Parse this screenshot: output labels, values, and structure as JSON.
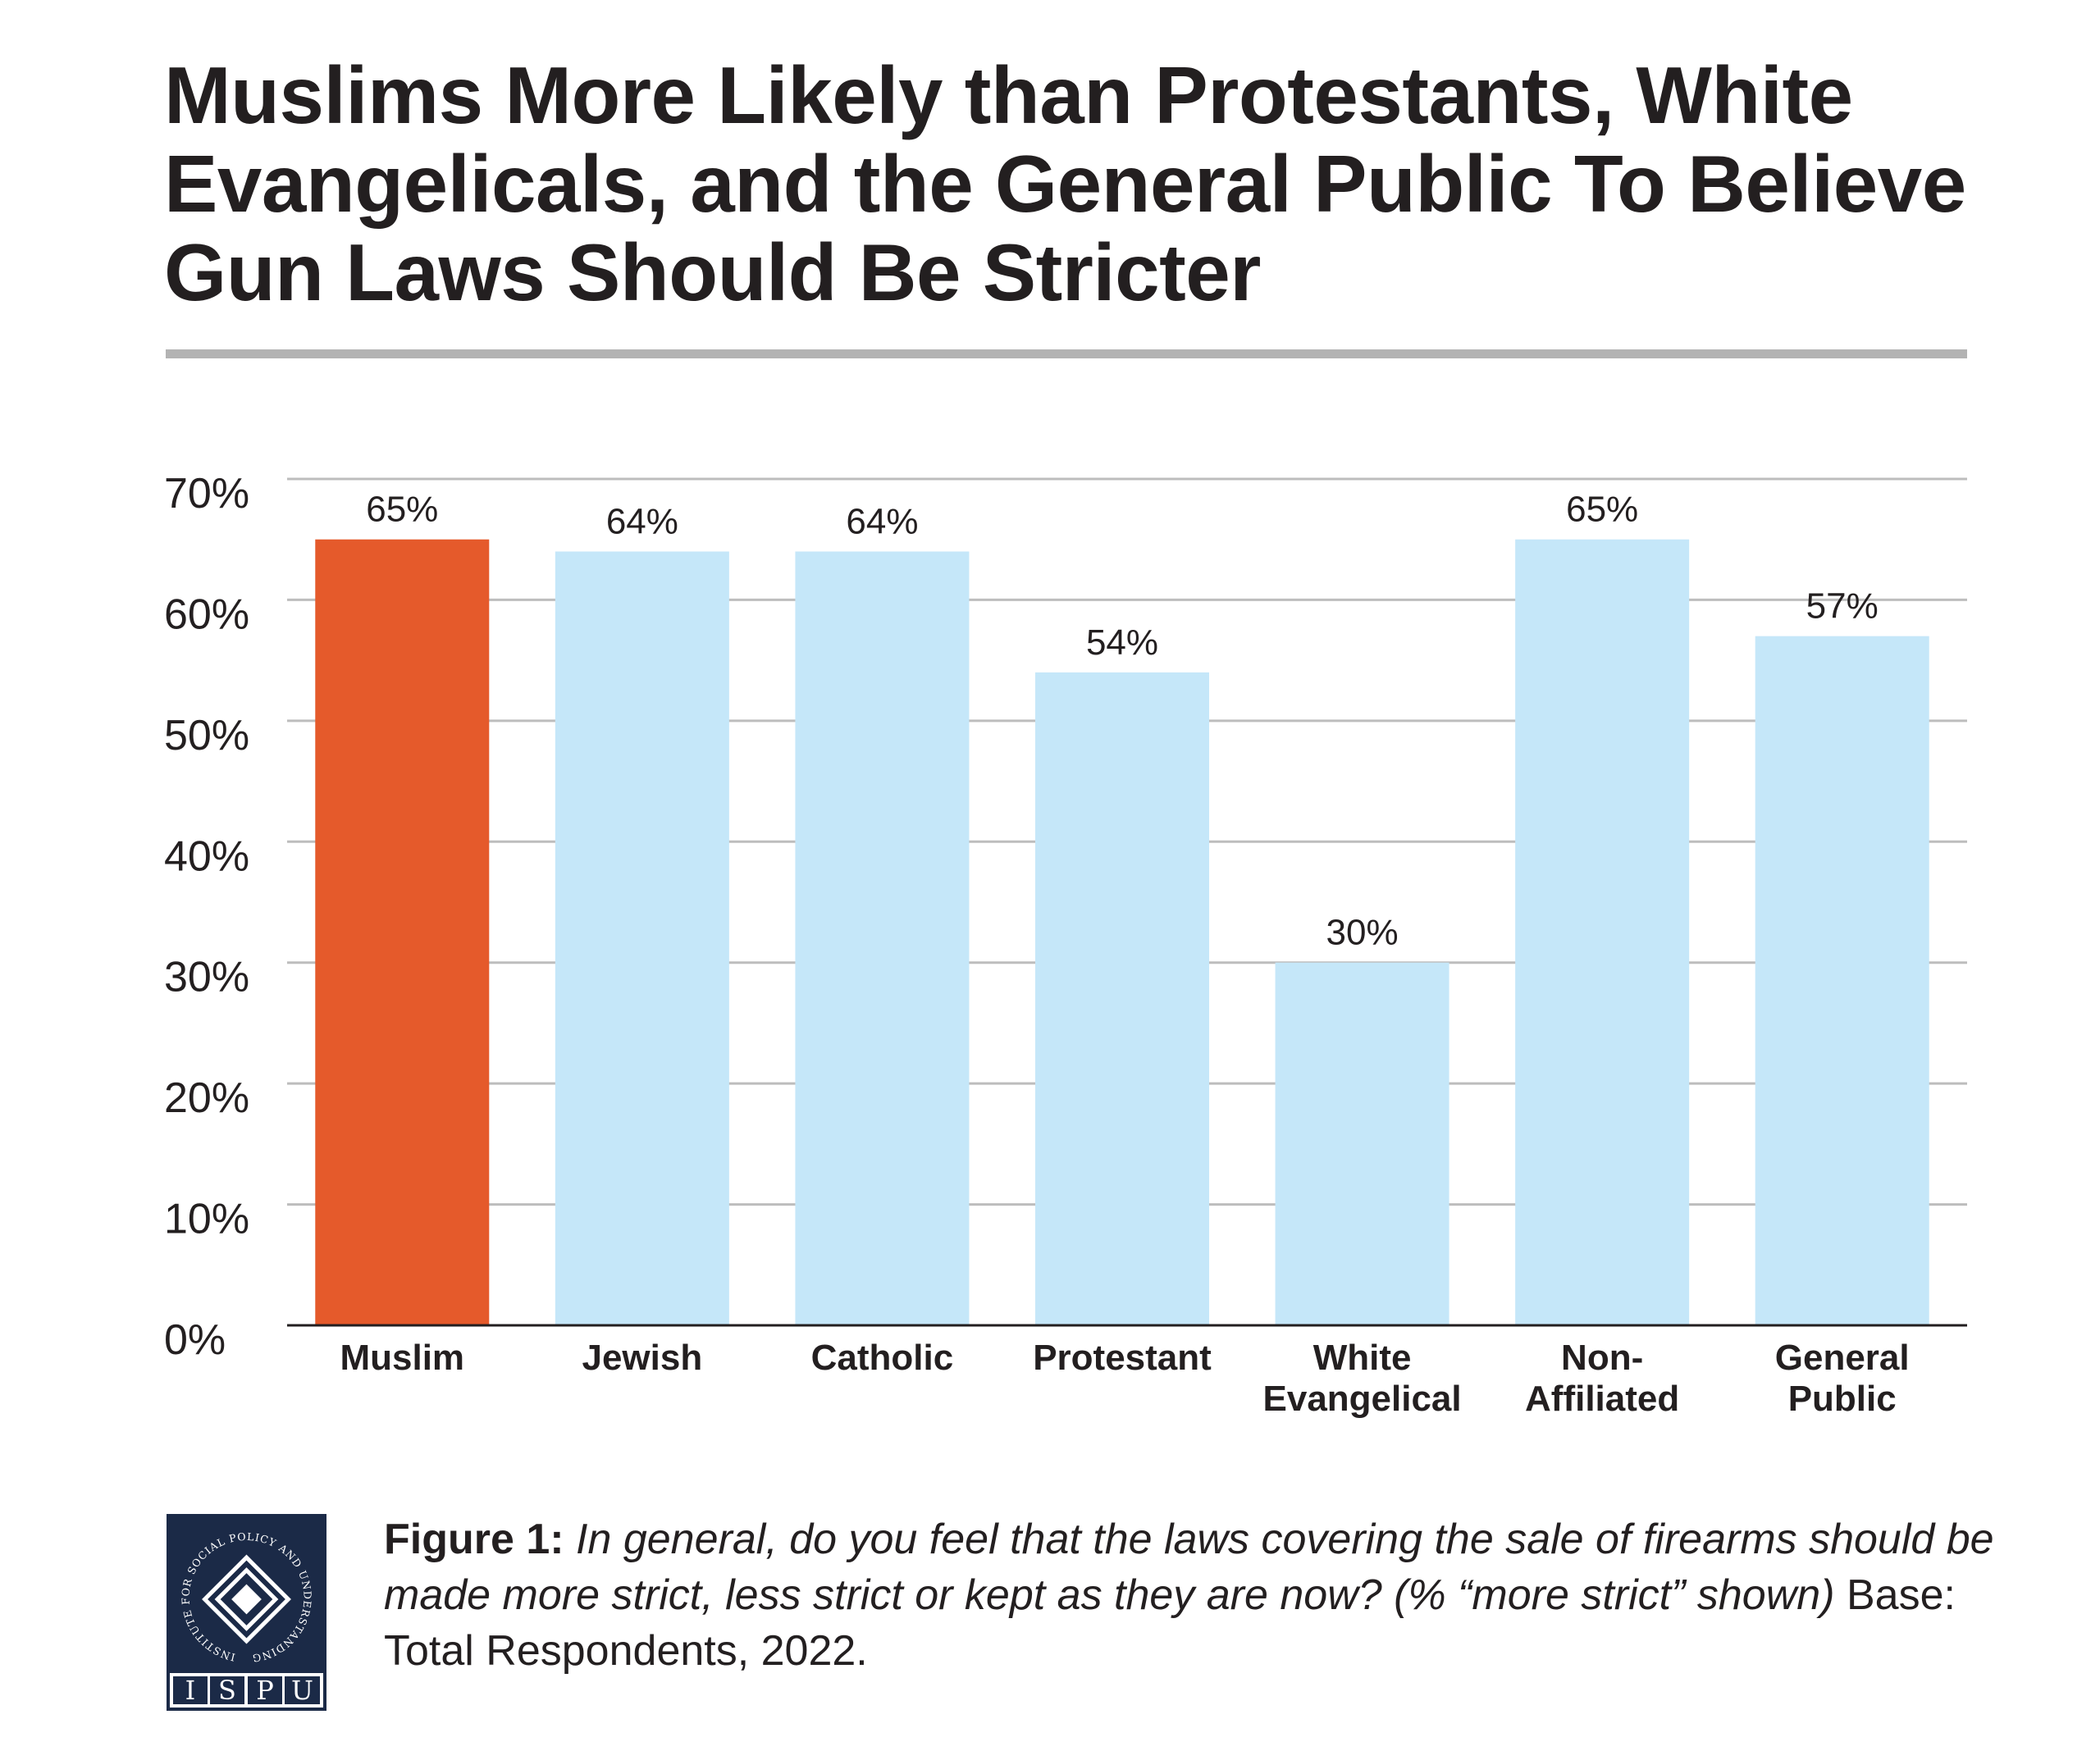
{
  "chart_data": {
    "type": "bar",
    "title": "Muslims More Likely than Protestants, White Evangelicals, and the General Public To Believe Gun Laws Should Be Stricter",
    "categories": [
      [
        "Muslim"
      ],
      [
        "Jewish"
      ],
      [
        "Catholic"
      ],
      [
        "Protestant"
      ],
      [
        "White",
        "Evangelical"
      ],
      [
        "Non-",
        "Affiliated"
      ],
      [
        "General",
        "Public"
      ]
    ],
    "values": [
      65,
      64,
      64,
      54,
      30,
      65,
      57
    ],
    "data_labels": [
      "65%",
      "64%",
      "64%",
      "54%",
      "30%",
      "65%",
      "57%"
    ],
    "highlight_index": 0,
    "colors": {
      "highlight": "#e55a2b",
      "default": "#c5e7f9",
      "grid": "#bdbdbd",
      "axis": "#231f20"
    },
    "ylim": [
      0,
      70
    ],
    "yticks": [
      0,
      10,
      20,
      30,
      40,
      50,
      60,
      70
    ],
    "ytick_labels": [
      "0%",
      "10%",
      "20%",
      "30%",
      "40%",
      "50%",
      "60%",
      "70%"
    ],
    "grid": true,
    "xlabel": "",
    "ylabel": ""
  },
  "caption": {
    "label": "Figure 1:",
    "question": "In general, do you feel that the laws covering the sale of firearms should be made more strict, less strict or kept as they are now? (% “more strict” shown)",
    "base": "Base: Total Respondents, 2022."
  },
  "logo": {
    "ring_text": "INSTITUTE FOR SOCIAL POLICY AND UNDERSTANDING",
    "letters": [
      "I",
      "S",
      "P",
      "U"
    ],
    "colors": {
      "navy": "#1b2a47",
      "white": "#ffffff"
    }
  }
}
